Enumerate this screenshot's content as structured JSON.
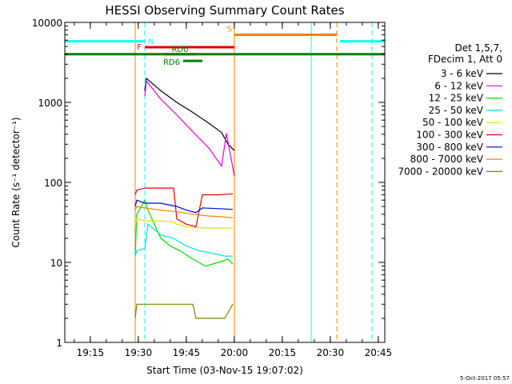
{
  "chart_data": {
    "type": "line",
    "title": "HESSI Observing Summary Count Rates",
    "xlabel": "Start Time (03-Nov-15 19:07:02)",
    "ylabel": "Count Rate (s⁻¹ detector⁻¹)",
    "yscale": "log",
    "ylim": [
      1,
      10000
    ],
    "xlim_minutes": [
      0,
      100
    ],
    "x_ticks": [
      {
        "label": "19:15",
        "t": 7.97
      },
      {
        "label": "19:30",
        "t": 22.97
      },
      {
        "label": "19:45",
        "t": 37.97
      },
      {
        "label": "20:00",
        "t": 52.97
      },
      {
        "label": "20:15",
        "t": 67.97
      },
      {
        "label": "20:30",
        "t": 82.97
      },
      {
        "label": "20:45",
        "t": 97.97
      }
    ],
    "y_ticks": [
      {
        "label": "1",
        "v": 1
      },
      {
        "label": "10",
        "v": 10
      },
      {
        "label": "100",
        "v": 100
      },
      {
        "label": "1000",
        "v": 1000
      },
      {
        "label": "10000",
        "v": 10000
      }
    ],
    "legend_header": [
      "Det 1,5,7,",
      "FDecim 1, Att 0"
    ],
    "series": [
      {
        "name": "3 - 6 keV",
        "color": "#000000",
        "x": [
          25,
          25.5,
          30,
          35,
          40,
          45,
          49,
          51,
          53
        ],
        "values": [
          1400,
          2000,
          1400,
          1000,
          750,
          550,
          420,
          300,
          250
        ]
      },
      {
        "name": "6 - 12 keV",
        "color": "#e000e0",
        "x": [
          25,
          25.5,
          30,
          35,
          40,
          45,
          49,
          50.5,
          53
        ],
        "values": [
          1200,
          1850,
          1100,
          700,
          430,
          270,
          160,
          410,
          120
        ]
      },
      {
        "name": "12 - 25 keV",
        "color": "#00e000",
        "x": [
          22,
          22.5,
          25,
          26,
          28,
          30,
          33,
          36,
          40,
          44,
          48,
          51,
          52.5
        ],
        "values": [
          12,
          40,
          60,
          45,
          30,
          20,
          16,
          14,
          11,
          9,
          10,
          11,
          9.5
        ]
      },
      {
        "name": "25 - 50 keV",
        "color": "#00e0e0",
        "x": [
          22,
          22.5,
          25,
          26,
          30,
          34,
          38,
          42,
          46,
          50,
          52.5
        ],
        "values": [
          12,
          14,
          15,
          30,
          22,
          20,
          16,
          14,
          13,
          12,
          12
        ]
      },
      {
        "name": "50 - 100 keV",
        "color": "#e0e000",
        "x": [
          22,
          22.5,
          25,
          30,
          34,
          35,
          38,
          42,
          46,
          50,
          52.5
        ],
        "values": [
          30,
          35,
          33,
          33,
          32,
          30,
          28,
          27,
          27,
          27,
          27
        ]
      },
      {
        "name": "100 - 300 keV",
        "color": "#e00000",
        "x": [
          22,
          22.5,
          25,
          30,
          34,
          35,
          38,
          41,
          43,
          48,
          52.5
        ],
        "values": [
          70,
          80,
          85,
          85,
          85,
          35,
          30,
          28,
          70,
          70,
          72
        ]
      },
      {
        "name": "300 - 800 keV",
        "color": "#0000e0",
        "x": [
          22,
          22.5,
          25,
          30,
          35,
          38,
          41,
          43,
          48,
          52.5
        ],
        "values": [
          50,
          60,
          55,
          55,
          50,
          45,
          42,
          48,
          47,
          46
        ]
      },
      {
        "name": "800 - 7000 keV",
        "color": "#ff8000",
        "x": [
          22,
          22.5,
          25,
          30,
          35,
          40,
          45,
          50,
          52.5
        ],
        "values": [
          45,
          50,
          48,
          45,
          43,
          40,
          38,
          37,
          36
        ]
      },
      {
        "name": "7000 - 20000 keV",
        "color": "#808000",
        "x": [
          22,
          22.5,
          25,
          30,
          35,
          40,
          41,
          45,
          50,
          52.5
        ],
        "values": [
          2,
          3,
          3,
          3,
          3,
          3,
          2,
          2,
          2,
          3
        ]
      }
    ],
    "flag_bars": [
      {
        "name": "N",
        "color": "#00ffff",
        "ranges": [
          [
            0,
            25
          ],
          [
            86,
            100
          ]
        ],
        "value": 5800
      },
      {
        "name": "S",
        "color": "#ff8000",
        "ranges": [
          [
            53,
            85
          ]
        ],
        "value": 7000
      },
      {
        "name": "F",
        "color": "#e00000",
        "ranges": [
          [
            25,
            53
          ]
        ],
        "value": 4900
      },
      {
        "name": "",
        "color": "#008000",
        "ranges": [
          [
            0,
            100
          ]
        ],
        "value": 4000
      },
      {
        "name": "RD0",
        "color": "#008000",
        "ranges": [
          [
            31,
            41
          ]
        ],
        "value": 4000
      },
      {
        "name": "RD6",
        "color": "#008000",
        "ranges": [
          [
            37,
            43
          ]
        ],
        "value": 3300
      }
    ],
    "vlines": [
      {
        "t": 0,
        "color": "#00ffff",
        "dash": false
      },
      {
        "t": 25,
        "color": "#00ffff",
        "dash": true
      },
      {
        "t": 22,
        "color": "#ff8000",
        "dash": false
      },
      {
        "t": 53,
        "color": "#ff8000",
        "dash": false
      },
      {
        "t": 77,
        "color": "#00ffff",
        "dash": false
      },
      {
        "t": 85,
        "color": "#ff8000",
        "dash": true
      },
      {
        "t": 96,
        "color": "#00ffff",
        "dash": true
      }
    ]
  },
  "footer_timestamp": "5-Oct-2017 05:57"
}
